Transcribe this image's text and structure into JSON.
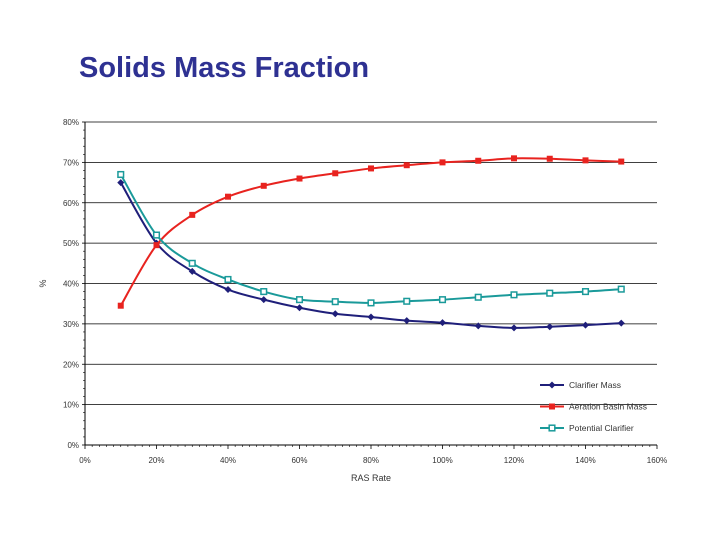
{
  "slide": {
    "title": "Solids Mass Fraction"
  },
  "chart_data": {
    "type": "line",
    "title": "",
    "xlabel": "RAS Rate",
    "ylabel": "%",
    "xlim": [
      0,
      160
    ],
    "ylim": [
      0,
      80
    ],
    "x_ticks": [
      "0%",
      "20%",
      "40%",
      "60%",
      "80%",
      "100%",
      "120%",
      "140%",
      "160%"
    ],
    "y_ticks": [
      "0%",
      "10%",
      "20%",
      "30%",
      "40%",
      "50%",
      "60%",
      "70%",
      "80%"
    ],
    "x": [
      10,
      20,
      30,
      40,
      50,
      60,
      70,
      80,
      90,
      100,
      110,
      120,
      130,
      140,
      150
    ],
    "series": [
      {
        "name": "Clarifier Mass",
        "color": "#1f1f7a",
        "marker": "diamond",
        "values": [
          65,
          50,
          43,
          38.5,
          36,
          34,
          32.5,
          31.7,
          30.8,
          30.3,
          29.5,
          29,
          29.3,
          29.7,
          30.2
        ]
      },
      {
        "name": "Aeration Basin Mass",
        "color": "#e8231f",
        "marker": "square",
        "values": [
          34.5,
          49.5,
          57,
          61.5,
          64.2,
          66,
          67.3,
          68.5,
          69.3,
          70,
          70.4,
          71,
          70.9,
          70.5,
          70.2
        ]
      },
      {
        "name": "Potential Clarifier",
        "color": "#1a9a9a",
        "marker": "square-open",
        "values": [
          67,
          52,
          45,
          41,
          38,
          36,
          35.5,
          35.2,
          35.6,
          36,
          36.6,
          37.2,
          37.6,
          38,
          38.6
        ]
      }
    ],
    "legend_position": "bottom-right",
    "grid": "horizontal"
  }
}
